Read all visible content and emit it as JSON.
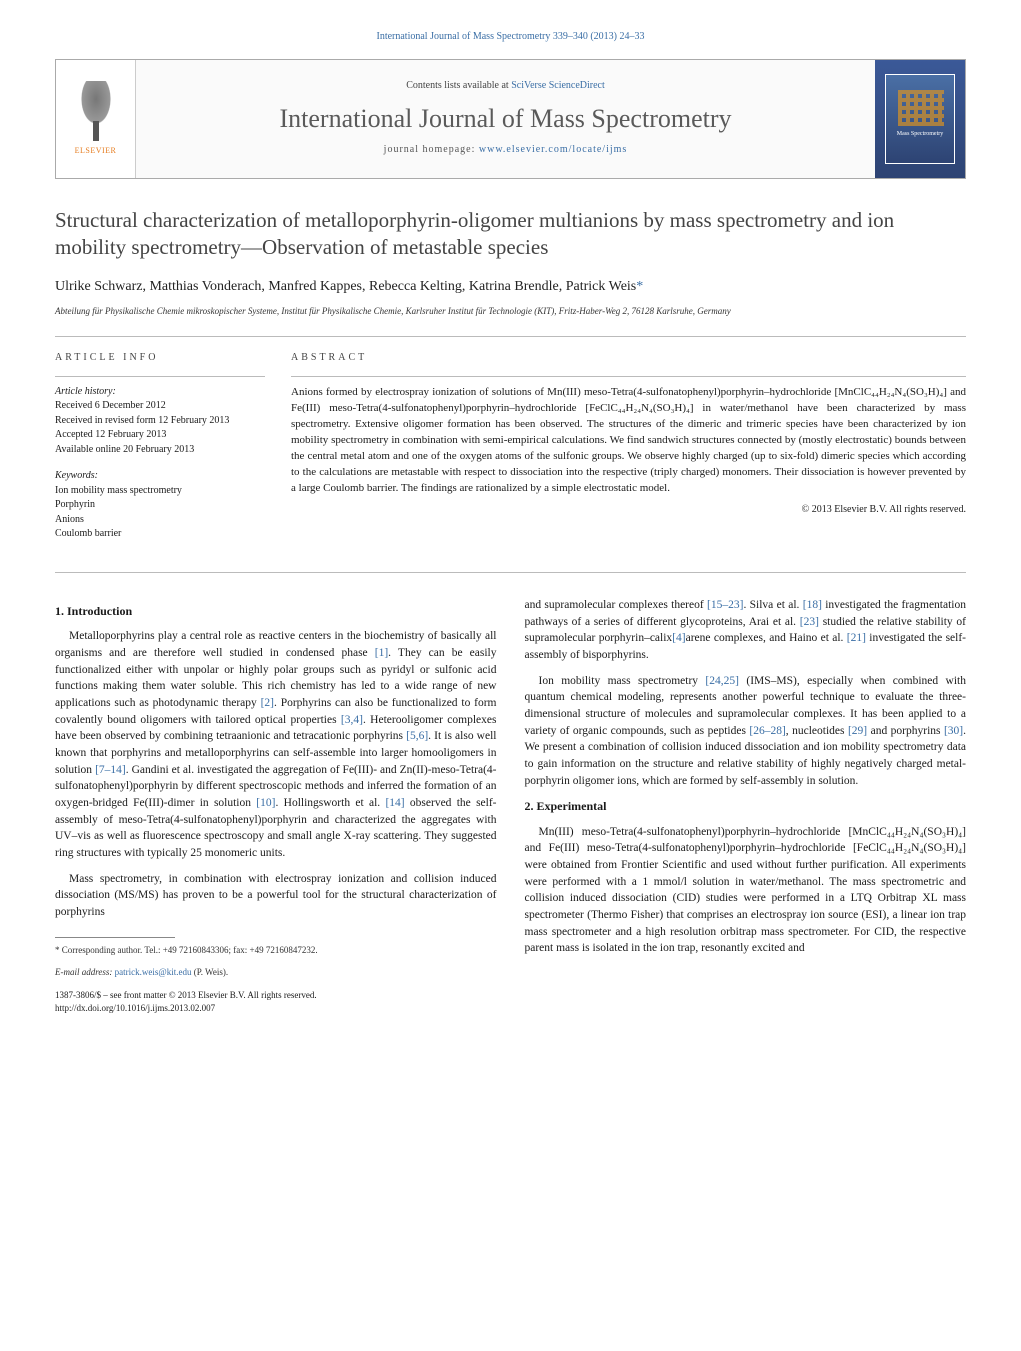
{
  "header_citation": "International Journal of Mass Spectrometry 339–340 (2013) 24–33",
  "masthead": {
    "publisher": "ELSEVIER",
    "contents_prefix": "Contents lists available at ",
    "contents_link": "SciVerse ScienceDirect",
    "journal_name": "International Journal of Mass Spectrometry",
    "homepage_label": "journal homepage: ",
    "homepage_url": "www.elsevier.com/locate/ijms"
  },
  "title": "Structural characterization of metalloporphyrin-oligomer multianions by mass spectrometry and ion mobility spectrometry—Observation of metastable species",
  "authors": "Ulrike Schwarz, Matthias Vonderach, Manfred Kappes, Rebecca Kelting, Katrina Brendle, Patrick Weis",
  "corr_marker": "*",
  "affiliation": "Abteilung für Physikalische Chemie mikroskopischer Systeme, Institut für Physikalische Chemie, Karlsruher Institut für Technologie (KIT), Fritz-Haber-Weg 2, 76128 Karlsruhe, Germany",
  "article_info_heading": "ARTICLE INFO",
  "abstract_heading": "ABSTRACT",
  "history_label": "Article history:",
  "history": {
    "received": "Received 6 December 2012",
    "revised": "Received in revised form 12 February 2013",
    "accepted": "Accepted 12 February 2013",
    "online": "Available online 20 February 2013"
  },
  "keywords_label": "Keywords:",
  "keywords": {
    "k1": "Ion mobility mass spectrometry",
    "k2": "Porphyrin",
    "k3": "Anions",
    "k4": "Coulomb barrier"
  },
  "abstract_text": "Anions formed by electrospray ionization of solutions of Mn(III) meso-Tetra(4-sulfonatophenyl)porphyrin–hydrochloride [MnClC₄₄H₂₄N₄(SO₃H)₄] and Fe(III) meso-Tetra(4-sulfonatophenyl)porphyrin–hydrochloride [FeClC₄₄H₂₄N₄(SO₃H)₄] in water/methanol have been characterized by mass spectrometry. Extensive oligomer formation has been observed. The structures of the dimeric and trimeric species have been characterized by ion mobility spectrometry in combination with semi-empirical calculations. We find sandwich structures connected by (mostly electrostatic) bounds between the central metal atom and one of the oxygen atoms of the sulfonic groups. We observe highly charged (up to six-fold) dimeric species which according to the calculations are metastable with respect to dissociation into the respective (triply charged) monomers. Their dissociation is however prevented by a large Coulomb barrier. The findings are rationalized by a simple electrostatic model.",
  "copyright": "© 2013 Elsevier B.V. All rights reserved.",
  "sections": {
    "s1_heading": "1. Introduction",
    "s1_p1": "Metalloporphyrins play a central role as reactive centers in the biochemistry of basically all organisms and are therefore well studied in condensed phase [1]. They can be easily functionalized either with unpolar or highly polar groups such as pyridyl or sulfonic acid functions making them water soluble. This rich chemistry has led to a wide range of new applications such as photodynamic therapy [2]. Porphyrins can also be functionalized to form covalently bound oligomers with tailored optical properties [3,4]. Heterooligomer complexes have been observed by combining tetraanionic and tetracationic porphyrins [5,6]. It is also well known that porphyrins and metalloporphyrins can self-assemble into larger homooligomers in solution [7–14]. Gandini et al. investigated the aggregation of Fe(III)- and Zn(II)-meso-Tetra(4-sulfonatophenyl)porphyrin by different spectroscopic methods and inferred the formation of an oxygen-bridged Fe(III)-dimer in solution [10]. Hollingsworth et al. [14] observed the self-assembly of meso-Tetra(4-sulfonatophenyl)porphyrin and characterized the aggregates with UV–vis as well as fluorescence spectroscopy and small angle X-ray scattering. They suggested ring structures with typically 25 monomeric units.",
    "s1_p2": "Mass spectrometry, in combination with electrospray ionization and collision induced dissociation (MS/MS) has proven to be a powerful tool for the structural characterization of porphyrins",
    "s1_p3": "and supramolecular complexes thereof [15–23]. Silva et al. [18] investigated the fragmentation pathways of a series of different glycoproteins, Arai et al. [23] studied the relative stability of supramolecular porphyrin–calix[4]arene complexes, and Haino et al. [21] investigated the self-assembly of bisporphyrins.",
    "s1_p4": "Ion mobility mass spectrometry [24,25] (IMS–MS), especially when combined with quantum chemical modeling, represents another powerful technique to evaluate the three-dimensional structure of molecules and supramolecular complexes. It has been applied to a variety of organic compounds, such as peptides [26–28], nucleotides [29] and porphyrins [30]. We present a combination of collision induced dissociation and ion mobility spectrometry data to gain information on the structure and relative stability of highly negatively charged metal-porphyrin oligomer ions, which are formed by self-assembly in solution.",
    "s2_heading": "2. Experimental",
    "s2_p1": "Mn(III) meso-Tetra(4-sulfonatophenyl)porphyrin–hydrochloride [MnClC₄₄H₂₄N₄(SO₃H)₄] and Fe(III) meso-Tetra(4-sulfonatophenyl)porphyrin–hydrochloride [FeClC₄₄H₂₄N₄(SO₃H)₄] were obtained from Frontier Scientific and used without further purification. All experiments were performed with a 1 mmol/l solution in water/methanol. The mass spectrometric and collision induced dissociation (CID) studies were performed in a LTQ Orbitrap XL mass spectrometer (Thermo Fisher) that comprises an electrospray ion source (ESI), a linear ion trap mass spectrometer and a high resolution orbitrap mass spectrometer. For CID, the respective parent mass is isolated in the ion trap, resonantly excited and"
  },
  "footnote": {
    "corr_label": "* Corresponding author. Tel.: +49 72160843306; fax: +49 72160847232.",
    "email_label": "E-mail address: ",
    "email": "patrick.weis@kit.edu",
    "email_suffix": " (P. Weis)."
  },
  "doi": {
    "issn_line": "1387-3806/$ – see front matter © 2013 Elsevier B.V. All rights reserved.",
    "doi_url": "http://dx.doi.org/10.1016/j.ijms.2013.02.007"
  },
  "colors": {
    "link": "#3a6ea5",
    "text": "#1a1a1a",
    "rule": "#888888"
  }
}
